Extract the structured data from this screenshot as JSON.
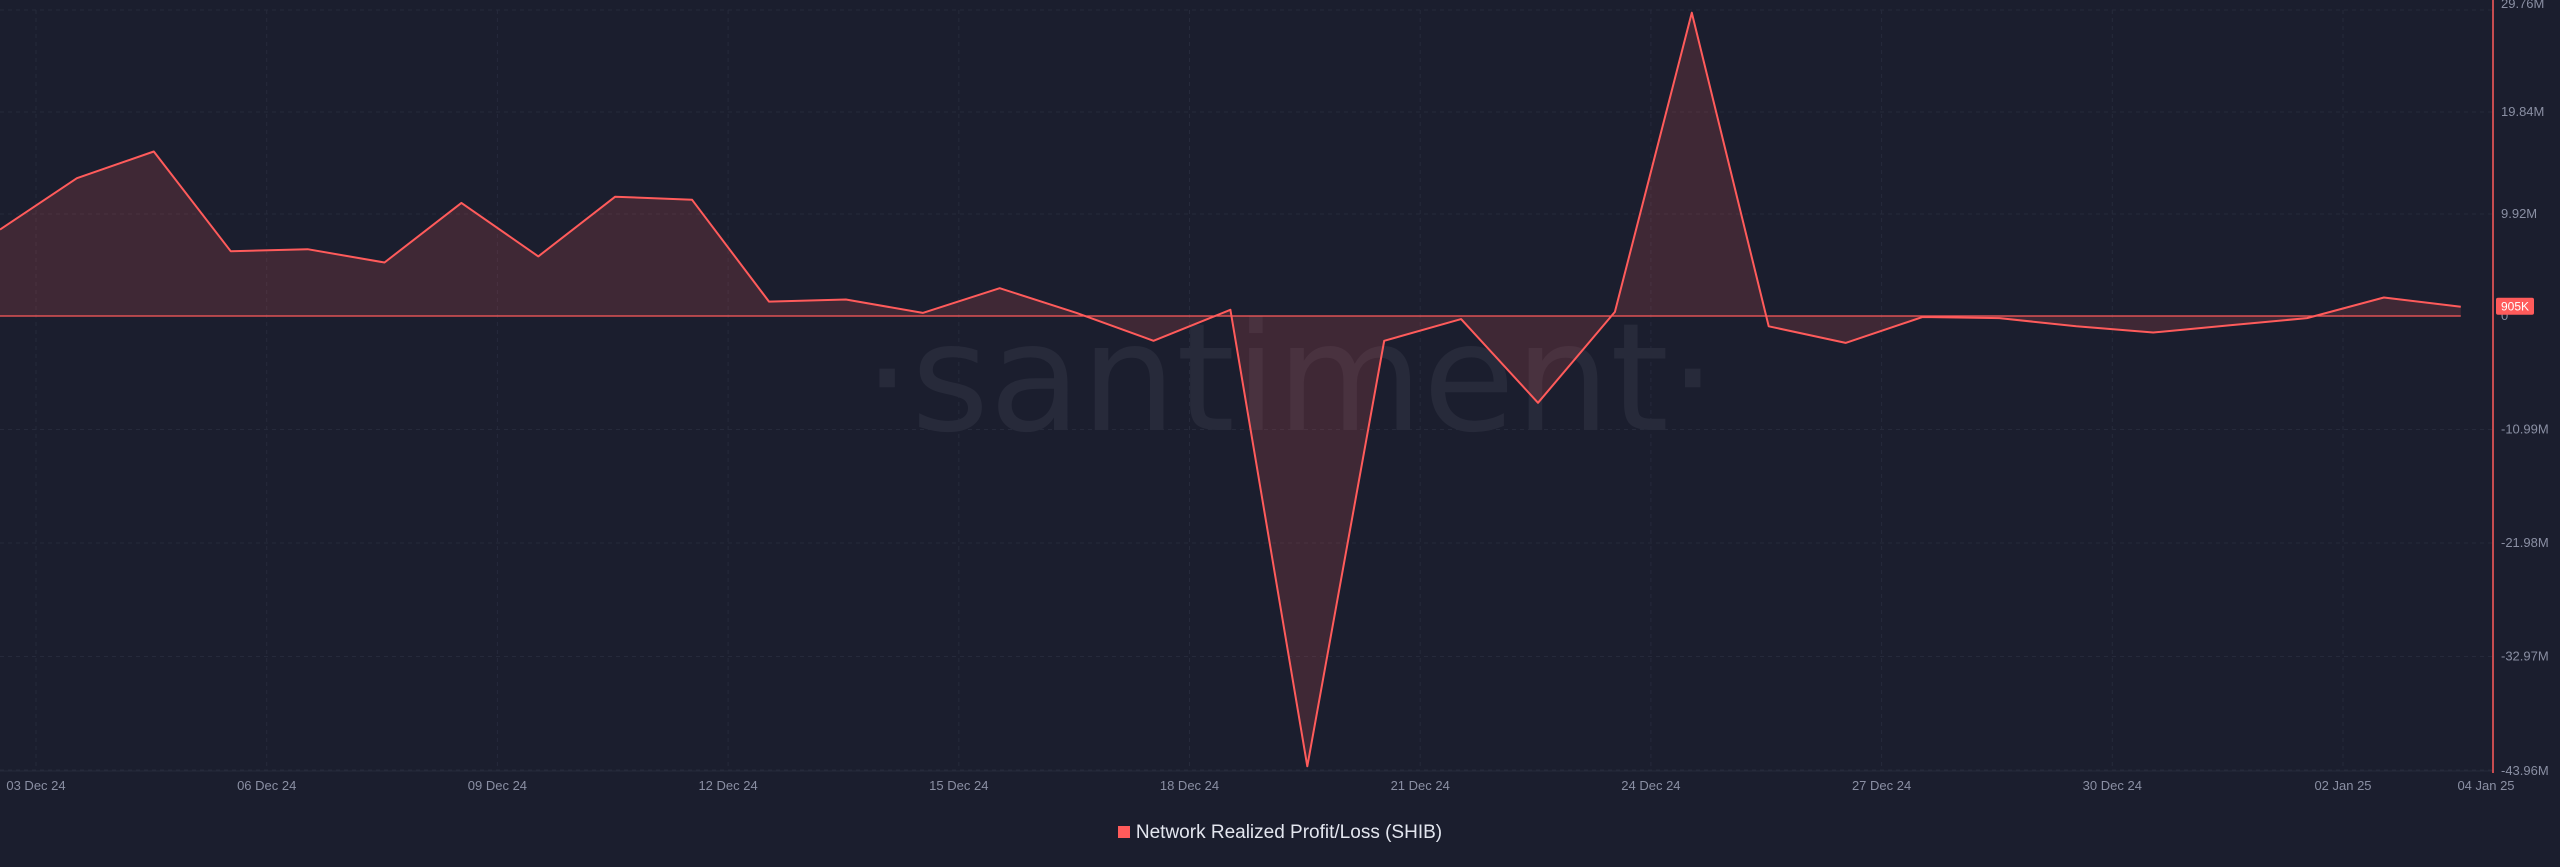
{
  "watermark": "·santiment·",
  "legend": {
    "label": "Network Realized Profit/Loss (SHIB)",
    "color": "#ff5b5b"
  },
  "colors": {
    "line": "#ff5b5b",
    "fill": "rgba(255, 91, 91, 0.16)",
    "background": "#1b1e2e",
    "grid": "#262a3b",
    "axis_text": "#8a8fa3",
    "badge_bg": "#ff5b5b",
    "badge_text": "#ffffff"
  },
  "chart_data": {
    "type": "area",
    "title": "",
    "xlabel": "",
    "ylabel": "",
    "ylim": [
      -43.96,
      29.76
    ],
    "y_unit": "M",
    "grid": true,
    "legend_position": "bottom-center",
    "x_ticks": [
      "03 Dec 24",
      "06 Dec 24",
      "09 Dec 24",
      "12 Dec 24",
      "15 Dec 24",
      "18 Dec 24",
      "21 Dec 24",
      "24 Dec 24",
      "27 Dec 24",
      "30 Dec 24",
      "02 Jan 25",
      "04 Jan 25"
    ],
    "y_ticks": [
      {
        "value": 29.76,
        "label": "29.76M"
      },
      {
        "value": 19.84,
        "label": "19.84M"
      },
      {
        "value": 9.92,
        "label": "9.92M"
      },
      {
        "value": 0,
        "label": "0"
      },
      {
        "value": -10.99,
        "label": "-10.99M"
      },
      {
        "value": -21.98,
        "label": "-21.98M"
      },
      {
        "value": -32.97,
        "label": "-32.97M"
      },
      {
        "value": -43.96,
        "label": "-43.96M"
      }
    ],
    "current_value": {
      "value": 0.905,
      "label": "905K"
    },
    "series": [
      {
        "name": "Network Realized Profit/Loss (SHIB)",
        "x": [
          "2024-12-03",
          "2024-12-04",
          "2024-12-05",
          "2024-12-06",
          "2024-12-07",
          "2024-12-08",
          "2024-12-09",
          "2024-12-10",
          "2024-12-11",
          "2024-12-12",
          "2024-12-13",
          "2024-12-14",
          "2024-12-15",
          "2024-12-16",
          "2024-12-17",
          "2024-12-18",
          "2024-12-19",
          "2024-12-20",
          "2024-12-21",
          "2024-12-22",
          "2024-12-23",
          "2024-12-24",
          "2024-12-25",
          "2024-12-26",
          "2024-12-27",
          "2024-12-28",
          "2024-12-29",
          "2024-12-30",
          "2024-12-31",
          "2025-01-01",
          "2025-01-02",
          "2025-01-03",
          "2025-01-04"
        ],
        "values": [
          8.4,
          13.4,
          16.0,
          6.3,
          6.5,
          5.2,
          11.0,
          5.8,
          11.6,
          11.3,
          1.4,
          1.6,
          0.3,
          2.7,
          0.3,
          -2.4,
          0.6,
          -43.6,
          -2.4,
          -0.3,
          -8.4,
          0.4,
          29.5,
          -1.0,
          -2.6,
          -0.1,
          -0.2,
          -1.0,
          -1.6,
          -0.9,
          -0.2,
          1.8,
          0.9
        ]
      }
    ]
  }
}
